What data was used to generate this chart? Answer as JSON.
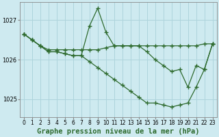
{
  "background_color": "#ceeaf0",
  "grid_color": "#aed4dc",
  "line_color": "#2d6a2d",
  "marker_color": "#2d6a2d",
  "title": "Graphe pression niveau de la mer (hPa)",
  "xlabel_ticks": [
    0,
    1,
    2,
    3,
    4,
    5,
    6,
    7,
    8,
    9,
    10,
    11,
    12,
    13,
    14,
    15,
    16,
    17,
    18,
    19,
    20,
    21,
    22,
    23
  ],
  "ylim": [
    1024.55,
    1027.45
  ],
  "yticks": [
    1025,
    1026,
    1027
  ],
  "series1_y": [
    1026.65,
    1026.5,
    1026.35,
    1026.25,
    1026.25,
    1026.25,
    1026.25,
    1026.25,
    1026.25,
    1026.25,
    1026.3,
    1026.35,
    1026.35,
    1026.35,
    1026.35,
    1026.35,
    1026.35,
    1026.35,
    1026.35,
    1026.35,
    1026.35,
    1026.35,
    1026.4,
    1026.4
  ],
  "series2_y": [
    1026.65,
    1026.5,
    1026.35,
    1026.2,
    1026.2,
    1026.15,
    1026.1,
    1026.1,
    1026.85,
    1027.3,
    1026.7,
    1026.35,
    1026.35,
    1026.35,
    1026.35,
    1026.2,
    1026.0,
    1025.85,
    1025.7,
    1025.75,
    1025.3,
    1025.85,
    1025.75,
    1026.4
  ],
  "series3_y": [
    1026.65,
    1026.5,
    1026.35,
    1026.2,
    1026.2,
    1026.15,
    1026.1,
    1026.1,
    1025.95,
    1025.8,
    1025.65,
    1025.5,
    1025.35,
    1025.2,
    1025.05,
    1024.9,
    1024.9,
    1024.85,
    1024.8,
    1024.85,
    1024.9,
    1025.3,
    1025.75,
    1026.4
  ],
  "title_fontsize": 7.5,
  "tick_fontsize": 6.0
}
